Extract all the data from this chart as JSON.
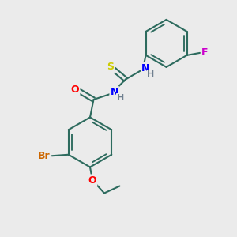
{
  "background_color": "#ebebeb",
  "bond_color": "#2d6b5e",
  "atom_colors": {
    "Br": "#cc6600",
    "O": "#ff0000",
    "N": "#0000ff",
    "S": "#cccc00",
    "F": "#cc00cc",
    "H": "#708090",
    "C": "#2d6b5e"
  },
  "font_size": 9,
  "line_width": 1.5
}
